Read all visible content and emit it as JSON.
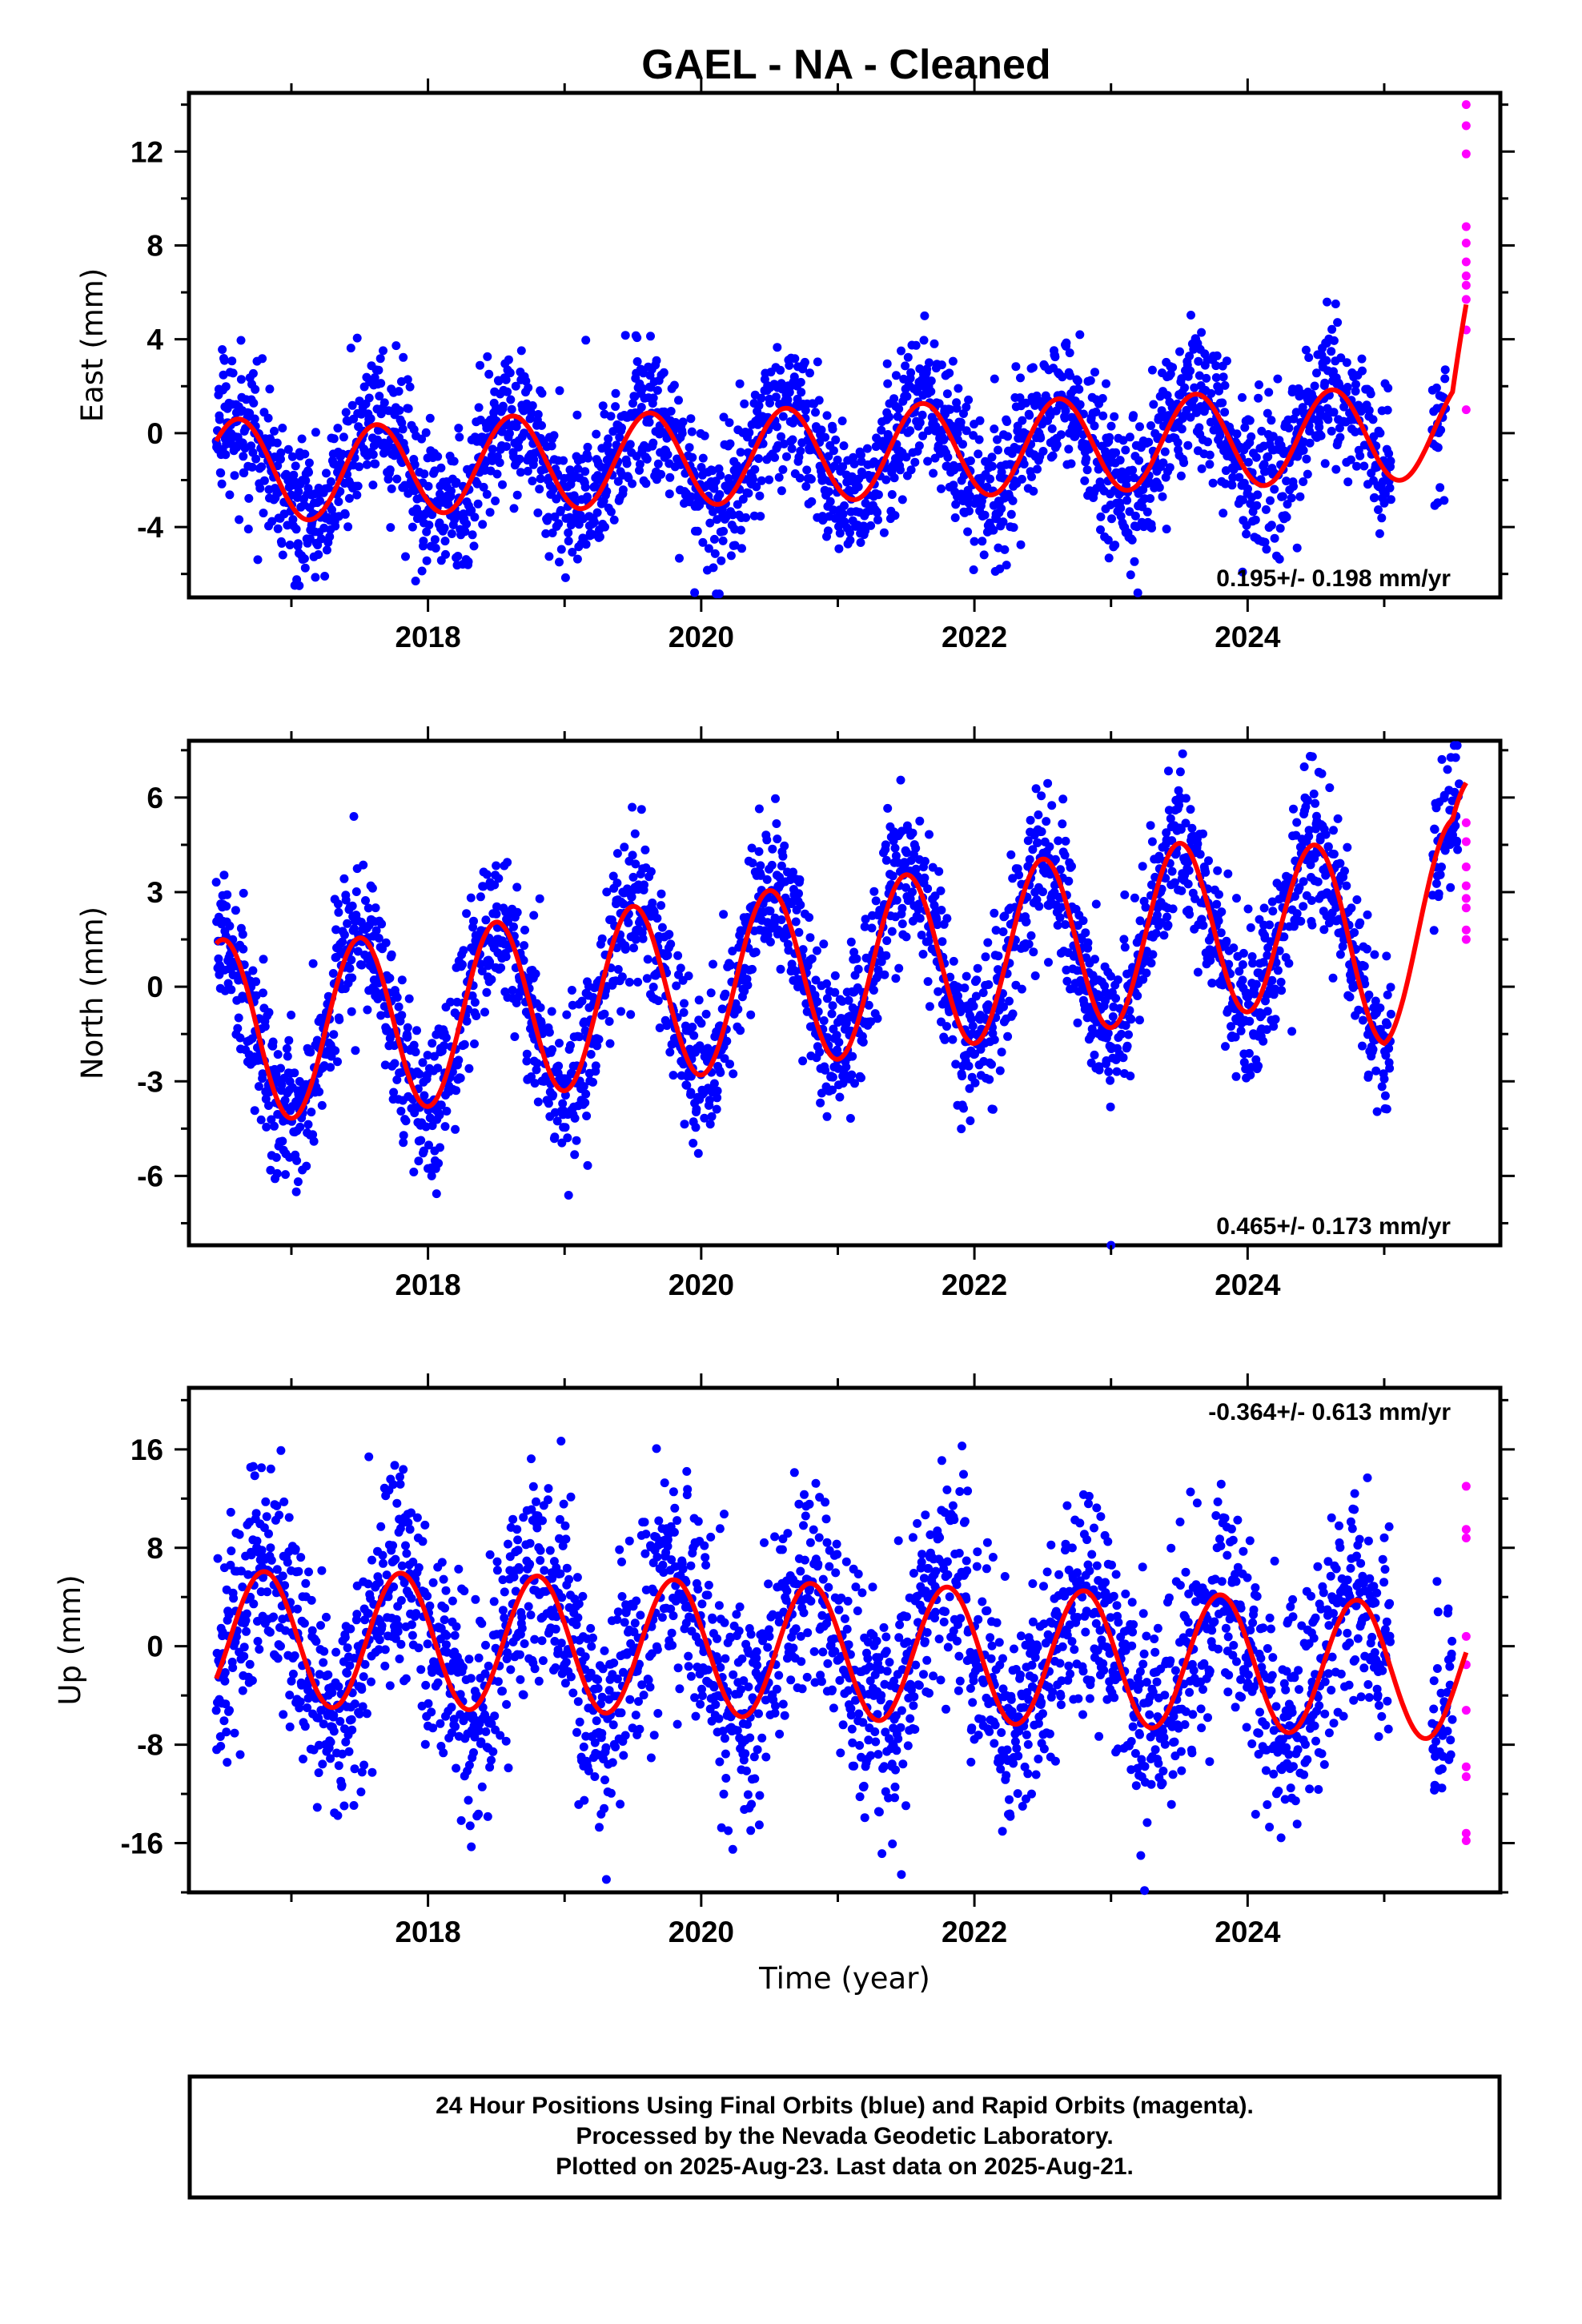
{
  "title": "GAEL  - NA - Cleaned",
  "colors": {
    "final_orbits": "#0000ff",
    "rapid_orbits": "#ff00ff",
    "model": "#ff0000",
    "frame": "#000000"
  },
  "xlabel": "Time (year)",
  "footer": {
    "line1": "24 Hour Positions Using Final Orbits (blue) and Rapid Orbits (magenta).",
    "line2": "Processed by the Nevada Geodetic Laboratory.",
    "line3": "Plotted on 2025-Aug-23. Last data on 2025-Aug-21."
  },
  "chart_data": [
    {
      "type": "scatter",
      "component": "East",
      "ylabel": "East (mm)",
      "rate_label": "0.195+/- 0.198 mm/yr",
      "xlim": [
        2016.25,
        2025.85
      ],
      "ylim": [
        -7,
        14.5
      ],
      "xticks": [
        2018,
        2020,
        2022,
        2024
      ],
      "xtick_labels": [
        "2018",
        "2020",
        "2022",
        "2024"
      ],
      "yticks": [
        -4,
        0,
        4,
        8,
        12
      ],
      "ytick_labels": [
        "-4",
        "0",
        "4",
        "8",
        "12"
      ],
      "series": [
        {
          "role": "final",
          "color": "#0000ff",
          "start": 2016.45,
          "end": 2025.45,
          "scatter": 1.5
        },
        {
          "role": "rapid",
          "color": "#ff00ff",
          "x": 2025.6,
          "values": [
            14.0,
            13.1,
            11.9,
            8.8,
            8.1,
            7.3,
            6.7,
            6.3,
            5.7,
            4.4,
            1.0
          ]
        },
        {
          "role": "model",
          "color": "#ff0000",
          "amplitude": 2.0,
          "phase": 2016.37,
          "knots_x": [
            2016.45,
            2017.3,
            2018.3,
            2019.3,
            2020.3,
            2021.3,
            2022.3,
            2023.3,
            2024.3,
            2025.0,
            2025.5,
            2025.6
          ],
          "knots_y": [
            -1.3,
            -1.8,
            -1.3,
            -1.2,
            -1.0,
            -0.8,
            -0.6,
            -0.4,
            -0.2,
            -0.1,
            0.3,
            3.5
          ]
        }
      ]
    },
    {
      "type": "scatter",
      "component": "North",
      "ylabel": "North (mm)",
      "rate_label": "0.465+/- 0.173 mm/yr",
      "xlim": [
        2016.25,
        2025.85
      ],
      "ylim": [
        -8.2,
        7.8
      ],
      "xticks": [
        2018,
        2020,
        2022,
        2024
      ],
      "xtick_labels": [
        "2018",
        "2020",
        "2022",
        "2024"
      ],
      "yticks": [
        -6,
        -3,
        0,
        3,
        6
      ],
      "ytick_labels": [
        "-6",
        "-3",
        "0",
        "3",
        "6"
      ],
      "series": [
        {
          "role": "final",
          "color": "#0000ff",
          "start": 2016.45,
          "end": 2025.55,
          "scatter": 1.2
        },
        {
          "role": "rapid",
          "color": "#ff00ff",
          "x": 2025.6,
          "values": [
            5.2,
            4.6,
            3.8,
            3.2,
            2.8,
            2.5,
            1.8,
            1.5
          ]
        },
        {
          "role": "model",
          "color": "#ff0000",
          "amplitude": 2.8,
          "phase": 2016.25,
          "knots_x": [
            2016.45,
            2017.2,
            2018.2,
            2019.2,
            2020.2,
            2021.2,
            2022.2,
            2023.2,
            2024.2,
            2025.0,
            2025.5,
            2025.6
          ],
          "knots_y": [
            -1.3,
            -1.4,
            -0.9,
            -0.4,
            0.1,
            0.6,
            1.1,
            1.6,
            2.1,
            1.0,
            2.5,
            4.2
          ]
        },
        {
          "role": "outlier",
          "color": "#0000ff",
          "x": [
            2023.0
          ],
          "values": [
            -8.2
          ]
        }
      ]
    },
    {
      "type": "scatter",
      "component": "Up",
      "ylabel": "Up (mm)",
      "rate_label": "-0.364+/- 0.613 mm/yr",
      "xlim": [
        2016.25,
        2025.85
      ],
      "ylim": [
        -20,
        21
      ],
      "xticks": [
        2018,
        2020,
        2022,
        2024
      ],
      "xtick_labels": [
        "2018",
        "2020",
        "2022",
        "2024"
      ],
      "yticks": [
        -16,
        -8,
        0,
        8,
        16
      ],
      "ytick_labels": [
        "-16",
        "-8",
        "0",
        "8",
        "16"
      ],
      "series": [
        {
          "role": "final",
          "color": "#0000ff",
          "start": 2016.45,
          "end": 2025.5,
          "scatter": 4.5
        },
        {
          "role": "rapid",
          "color": "#ff00ff",
          "x": 2025.6,
          "values": [
            13.0,
            9.5,
            8.8,
            0.8,
            -1.5,
            -5.2,
            -9.8,
            -10.6,
            -15.2,
            -15.8
          ]
        },
        {
          "role": "model",
          "color": "#ff0000",
          "amplitude": 5.5,
          "phase": 2016.55,
          "knots_x": [
            2016.45,
            2017.5,
            2018.5,
            2019.5,
            2020.5,
            2021.5,
            2022.5,
            2023.5,
            2024.5,
            2025.3,
            2025.6
          ],
          "knots_y": [
            0.6,
            0.5,
            0.3,
            0.0,
            -0.3,
            -0.6,
            -0.9,
            -1.2,
            -1.6,
            -2.0,
            -2.2
          ]
        }
      ]
    }
  ]
}
